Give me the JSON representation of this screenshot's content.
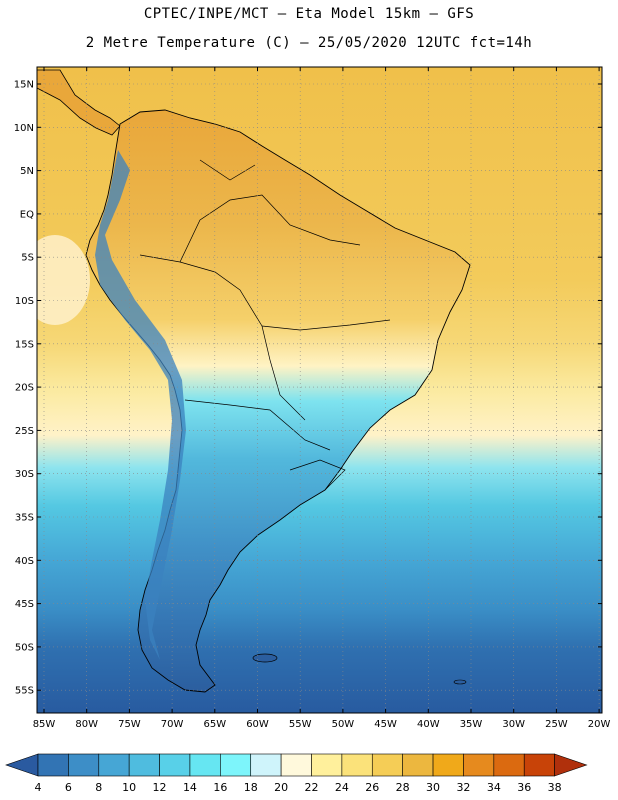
{
  "header": {
    "title_line1": "CPTEC/INPE/MCT –  Eta Model 15km – GFS",
    "title_line2": "2 Metre Temperature (C) – 25/05/2020 12UTC fct=14h"
  },
  "map": {
    "lat_labels": [
      "15N",
      "10N",
      "5N",
      "EQ",
      "5S",
      "10S",
      "15S",
      "20S",
      "25S",
      "30S",
      "35S",
      "40S",
      "45S",
      "50S",
      "55S"
    ],
    "lon_labels": [
      "85W",
      "80W",
      "75W",
      "70W",
      "65W",
      "60W",
      "55W",
      "50W",
      "45W",
      "40W",
      "35W",
      "30W",
      "25W",
      "20W"
    ],
    "graticule": "dotted"
  },
  "colorbar": {
    "labels": [
      "4",
      "6",
      "8",
      "10",
      "12",
      "14",
      "16",
      "18",
      "20",
      "22",
      "24",
      "26",
      "28",
      "30",
      "32",
      "34",
      "36",
      "38"
    ],
    "colors": [
      "#2a5aa0",
      "#3274b4",
      "#3d8ec7",
      "#46a6d5",
      "#4fbcdf",
      "#58d0e8",
      "#66e6f2",
      "#7df5fb",
      "#cff4fb",
      "#fff9dc",
      "#fff09c",
      "#fbe27a",
      "#f5cd56",
      "#ecb73f",
      "#f0a91a",
      "#e68a1e",
      "#db6a10",
      "#c84308",
      "#b0300c"
    ]
  }
}
